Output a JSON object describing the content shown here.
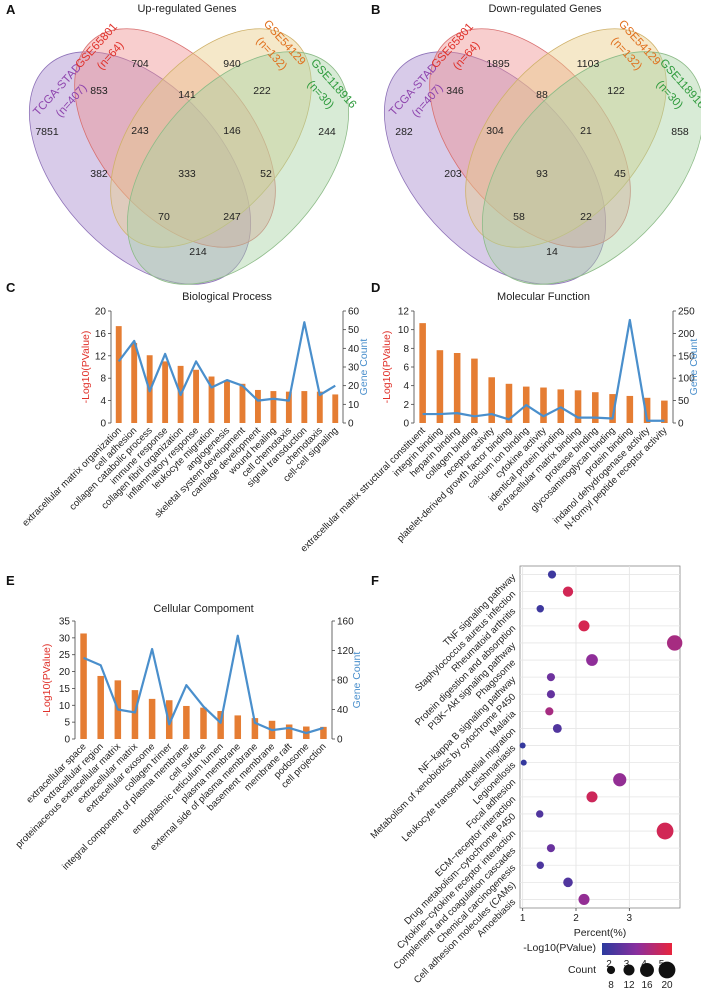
{
  "panels": {
    "A": "A",
    "B": "B",
    "C": "C",
    "D": "D",
    "E": "E",
    "F": "F"
  },
  "colors": {
    "purple": "#8e44ad",
    "red": "#e0322b",
    "orange": "#e0701e",
    "green": "#2f9b3d",
    "bar": "#e57d33",
    "line": "#4a8fcc",
    "gradient_low": "#2b3a9e",
    "gradient_high": "#e8243d"
  },
  "venn": {
    "up": {
      "title": "Up-regulated Genes",
      "sets": [
        {
          "name": "TCGA-STAD",
          "n": "(n=407)"
        },
        {
          "name": "GSE65801",
          "n": "(n=64)"
        },
        {
          "name": "GSE54129",
          "n": "(n=132)"
        },
        {
          "name": "GSE118916",
          "n": "(n=30)"
        }
      ],
      "counts": [
        "704",
        "940",
        "853",
        "141",
        "222",
        "7851",
        "243",
        "146",
        "244",
        "382",
        "333",
        "52",
        "70",
        "247",
        "214"
      ]
    },
    "down": {
      "title": "Down-regulated Genes",
      "sets": [
        {
          "name": "TCGA-STAD",
          "n": "(n=407)"
        },
        {
          "name": "GSE65801",
          "n": "(n=64)"
        },
        {
          "name": "GSE54129",
          "n": "(n=132)"
        },
        {
          "name": "GSE118916",
          "n": "(n=30)"
        }
      ],
      "counts": [
        "1895",
        "1103",
        "346",
        "88",
        "122",
        "282",
        "304",
        "21",
        "858",
        "203",
        "93",
        "45",
        "58",
        "22",
        "14"
      ]
    }
  },
  "chart_data": [
    {
      "panel": "C",
      "type": "bar",
      "title": "Biological Process",
      "ylabel": "-Log10(PValue)",
      "y2label": "Gene Count",
      "ylim": [
        0,
        20
      ],
      "y2lim": [
        0,
        60
      ],
      "yticks": [
        "0",
        "4",
        "8",
        "12",
        "16",
        "20"
      ],
      "y2ticks": [
        "0",
        "10",
        "20",
        "30",
        "40",
        "50",
        "60"
      ],
      "categories": [
        "extracellular matrix organization",
        "cell adhesion",
        "collagen catabolic process",
        "immune response",
        "collagen fibril organization",
        "inflammatory response",
        "leukocyte migration",
        "angiogenesis",
        "skeletal system development",
        "cartilage development",
        "wound healing",
        "cell chemotaxis",
        "signal transduction",
        "chemotaxis",
        "cell-cell signaling"
      ],
      "series": [
        {
          "name": "-Log10(PValue)",
          "values": [
            17.3,
            14.3,
            12.1,
            11.0,
            10.2,
            9.5,
            8.3,
            7.5,
            7.0,
            5.9,
            5.7,
            5.6,
            5.7,
            5.6,
            5.1
          ]
        },
        {
          "name": "Gene Count",
          "values": [
            33,
            44,
            17,
            37,
            15,
            33,
            19,
            23,
            20,
            12,
            13,
            12,
            54,
            15,
            20
          ]
        }
      ]
    },
    {
      "panel": "D",
      "type": "bar",
      "title": "Molecular Function",
      "ylabel": "-Log10(PValue)",
      "y2label": "Gene Count",
      "ylim": [
        0,
        12
      ],
      "y2lim": [
        0,
        250
      ],
      "yticks": [
        "0",
        "2",
        "4",
        "6",
        "8",
        "10",
        "12"
      ],
      "y2ticks": [
        "0",
        "50",
        "100",
        "150",
        "200",
        "250"
      ],
      "categories": [
        "extracellular matrix structural constituent",
        "integrin binding",
        "heparin binding",
        "collagen binding",
        "receptor activity",
        "platelet-derived growth factor binding",
        "calcium ion binding",
        "cytokine activity",
        "identical protein binding",
        "extracellular matrix binding",
        "protease binding",
        "glycosaminoglycan binding",
        "protein binding",
        "indanol dehydrogenase activity",
        "N-formyl peptide receptor activity"
      ],
      "series": [
        {
          "name": "-Log10(PValue)",
          "values": [
            10.7,
            7.8,
            7.5,
            6.9,
            4.9,
            4.2,
            3.9,
            3.8,
            3.6,
            3.5,
            3.3,
            3.1,
            2.9,
            2.7,
            2.4
          ]
        },
        {
          "name": "Gene Count",
          "values": [
            20,
            20,
            22,
            15,
            20,
            8,
            40,
            15,
            35,
            12,
            12,
            10,
            230,
            5,
            5
          ]
        }
      ]
    },
    {
      "panel": "E",
      "type": "bar",
      "title": "Cellular Compoment",
      "ylabel": "-Log10(PValue)",
      "y2label": "Gene Count",
      "ylim": [
        0,
        35
      ],
      "y2lim": [
        0,
        160
      ],
      "yticks": [
        "0",
        "5",
        "10",
        "15",
        "20",
        "25",
        "30",
        "35"
      ],
      "y2ticks": [
        "0",
        "40",
        "80",
        "120",
        "160"
      ],
      "categories": [
        "extracellular space",
        "extracellular region",
        "proteinaceous extracellular matrix",
        "extracellular matrix",
        "extracellular exosome",
        "collagen trimer",
        "integral component of plasma membrane",
        "cell surface",
        "endoplasmic reticulum lumen",
        "plasma membrane",
        "external side of plasma membrane",
        "basement membrane",
        "membrane raft",
        "podosome",
        "cell projection"
      ],
      "series": [
        {
          "name": "-Log10(PValue)",
          "values": [
            31.3,
            18.7,
            17.4,
            14.5,
            11.9,
            11.5,
            9.8,
            9.3,
            8.3,
            7.0,
            6.2,
            5.4,
            4.3,
            3.7,
            3.6
          ]
        },
        {
          "name": "Gene Count",
          "values": [
            110,
            100,
            40,
            36,
            122,
            20,
            73,
            44,
            22,
            140,
            22,
            12,
            15,
            8,
            15
          ]
        }
      ]
    },
    {
      "panel": "F",
      "type": "scatter",
      "xlabel": "Percent(%)",
      "xlim": [
        0.95,
        3.95
      ],
      "xticks": [
        "1",
        "2",
        "3"
      ],
      "color_label": "-Log10(PValue)",
      "color_ticks": [
        "2",
        "3",
        "4",
        "5"
      ],
      "color_range": [
        1.6,
        5.6
      ],
      "size_label": "Count",
      "size_ticks": [
        8,
        12,
        16,
        20
      ],
      "categories": [
        "TNF signaling pathway",
        "Staphylococcus aureus infection",
        "Rheumatoid arthritis",
        "Protein digestion and absorption",
        "PI3K−Akt signaling pathway",
        "Phagosome",
        "NF−kappa B signaling pathway",
        "Metabolism of xenobiotics by cytochrome P450",
        "Malaria",
        "Leukocyte transendothelial migration",
        "Leishmaniasis",
        "Legionellosis",
        "Focal adhesion",
        "ECM−receptor interaction",
        "Drug metabolism−cytochrome P450",
        "Cytokine−cytokine receptor interaction",
        "Complement and coagulation cascades",
        "Chemical carcinogenesis",
        "Cell adhesion molecules (CAMs)",
        "Amoebiasis"
      ],
      "percent": [
        1.55,
        1.85,
        1.33,
        2.15,
        3.85,
        2.3,
        1.53,
        1.53,
        1.5,
        1.65,
        1.0,
        1.02,
        2.82,
        2.3,
        1.32,
        3.67,
        1.53,
        1.33,
        1.85,
        2.15
      ],
      "neglog10p": [
        2.0,
        5.1,
        2.0,
        5.2,
        4.2,
        3.7,
        3.0,
        2.8,
        4.2,
        2.4,
        1.8,
        1.8,
        3.8,
        5.0,
        2.4,
        5.1,
        2.9,
        2.3,
        2.4,
        3.8
      ],
      "count": [
        8,
        11,
        7,
        12,
        18,
        13,
        8,
        8,
        8,
        9,
        5,
        5,
        15,
        12,
        7,
        20,
        8,
        7,
        10,
        12
      ]
    }
  ]
}
